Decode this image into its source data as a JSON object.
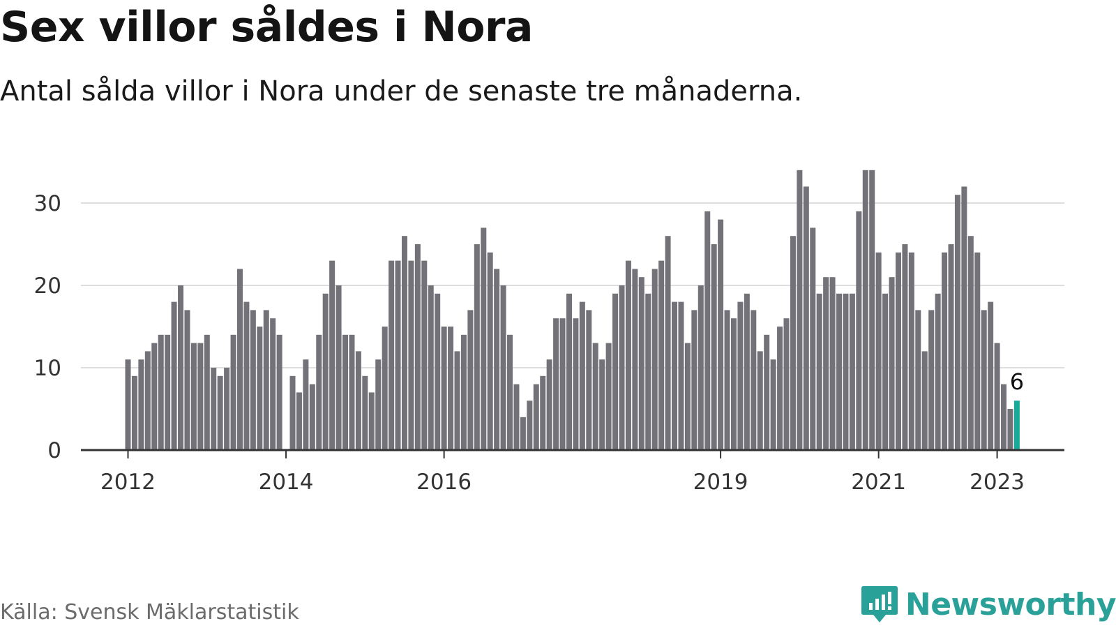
{
  "header": {
    "title": "Sex villor såldes i Nora",
    "subtitle": "Antal sålda villor i Nora under de senaste tre månaderna."
  },
  "footer": {
    "source": "Källa: Svensk Mäklarstatistik",
    "brand": "Newsworthy"
  },
  "colors": {
    "bar": "#737278",
    "highlight": "#1aa89b",
    "grid": "#dddddd",
    "axis": "#333333",
    "brand": "#2aa198"
  },
  "chart_data": {
    "type": "bar",
    "start": "2012-01",
    "x_tick_labels": [
      "2012",
      "2014",
      "2016",
      "2019",
      "2021",
      "2023"
    ],
    "x_tick_dates": [
      "2012-01",
      "2014-01",
      "2016-01",
      "2019-07",
      "2021-07",
      "2023-01"
    ],
    "y_ticks": [
      0,
      10,
      20,
      30
    ],
    "ylim": [
      0,
      35
    ],
    "grid": true,
    "values": [
      11,
      9,
      11,
      12,
      13,
      14,
      14,
      18,
      20,
      17,
      13,
      13,
      14,
      10,
      9,
      10,
      14,
      22,
      18,
      17,
      15,
      17,
      16,
      14,
      0,
      9,
      7,
      11,
      8,
      14,
      19,
      23,
      20,
      14,
      14,
      12,
      9,
      7,
      11,
      15,
      23,
      23,
      26,
      23,
      25,
      23,
      20,
      19,
      15,
      15,
      12,
      14,
      17,
      25,
      27,
      24,
      22,
      20,
      14,
      8,
      4,
      6,
      8,
      9,
      11,
      16,
      16,
      19,
      16,
      18,
      17,
      13,
      11,
      13,
      19,
      20,
      23,
      22,
      21,
      19,
      22,
      23,
      26,
      18,
      18,
      13,
      17,
      20,
      29,
      25,
      28,
      17,
      16,
      18,
      19,
      17,
      12,
      14,
      11,
      15,
      16,
      26,
      34,
      32,
      27,
      19,
      21,
      21,
      19,
      19,
      19,
      29,
      34,
      34,
      24,
      19,
      21,
      24,
      25,
      24,
      17,
      12,
      17,
      19,
      24,
      25,
      31,
      32,
      26,
      24,
      17,
      18,
      13,
      8,
      5,
      6
    ],
    "highlight_last": true,
    "last_label": "6"
  }
}
